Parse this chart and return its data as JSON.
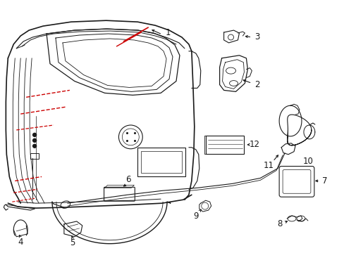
{
  "bg_color": "#ffffff",
  "lc": "#1a1a1a",
  "rc": "#cc0000",
  "figsize": [
    4.89,
    3.6
  ],
  "dpi": 100
}
